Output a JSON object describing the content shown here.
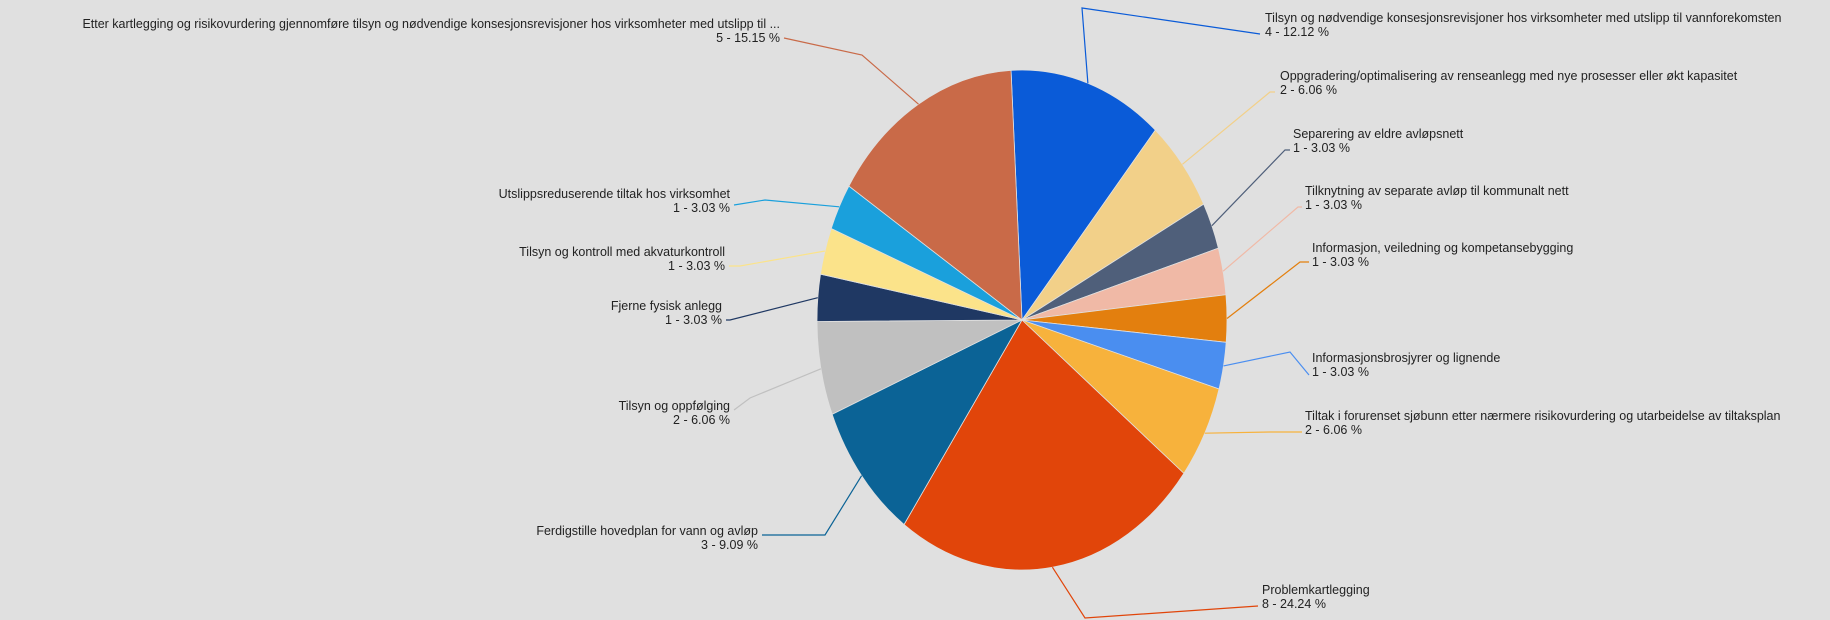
{
  "chart_data": {
    "type": "pie",
    "title": "",
    "colors_note": "slice colors listed per slice",
    "slices": [
      {
        "label": "Tilsyn og nødvendige konsesjonsrevisjoner  hos virksomheter med utslipp til vannforekomsten",
        "count": 4,
        "percent": "12.12",
        "value_text": "4 - 12.12 %",
        "color": "#0a5bd8"
      },
      {
        "label": "Oppgradering/optimalisering av renseanlegg med nye prosesser eller økt kapasitet",
        "count": 2,
        "percent": "6.06",
        "value_text": "2 - 6.06 %",
        "color": "#f2d089"
      },
      {
        "label": "Separering av eldre avløpsnett",
        "count": 1,
        "percent": "3.03",
        "value_text": "1 - 3.03 %",
        "color": "#4f5f7a"
      },
      {
        "label": "Tilknytning av separate avløp til kommunalt nett",
        "count": 1,
        "percent": "3.03",
        "value_text": "1 - 3.03 %",
        "color": "#f0b9a6"
      },
      {
        "label": "Informasjon, veiledning og kompetansebygging",
        "count": 1,
        "percent": "3.03",
        "value_text": "1 - 3.03 %",
        "color": "#e37f0e"
      },
      {
        "label": "Informasjonsbrosjyrer og lignende",
        "count": 1,
        "percent": "3.03",
        "value_text": "1 - 3.03 %",
        "color": "#4a8ef0"
      },
      {
        "label": "Tiltak i forurenset sjøbunn etter nærmere risikovurdering og utarbeidelse av tiltaksplan",
        "count": 2,
        "percent": "6.06",
        "value_text": "2 - 6.06 %",
        "color": "#f7b23c"
      },
      {
        "label": "Problemkartlegging",
        "count": 8,
        "percent": "24.24",
        "value_text": "8 - 24.24 %",
        "color": "#e1450a"
      },
      {
        "label": "Ferdigstille hovedplan for vann og avløp",
        "count": 3,
        "percent": "9.09",
        "value_text": "3 - 9.09 %",
        "color": "#0b6396"
      },
      {
        "label": "Tilsyn og oppfølging",
        "count": 2,
        "percent": "6.06",
        "value_text": "2 - 6.06 %",
        "color": "#c0c0c0"
      },
      {
        "label": "Fjerne fysisk anlegg",
        "count": 1,
        "percent": "3.03",
        "value_text": "1 - 3.03 %",
        "color": "#1f3863"
      },
      {
        "label": "Tilsyn og kontroll med akvaturkontroll",
        "count": 1,
        "percent": "3.03",
        "value_text": "1 - 3.03 %",
        "color": "#fbe38a"
      },
      {
        "label": "Utslippsreduserende tiltak hos virksomhet",
        "count": 1,
        "percent": "3.03",
        "value_text": "1 - 3.03 %",
        "color": "#1aa0dc"
      },
      {
        "label": "Etter kartlegging og risikovurdering gjennomføre tilsyn og nødvendige konsesjonsrevisjoner  hos virksomheter med utslipp til ...",
        "count": 5,
        "percent": "15.15",
        "value_text": "5 - 15.15 %",
        "color": "#c96a48"
      }
    ]
  }
}
